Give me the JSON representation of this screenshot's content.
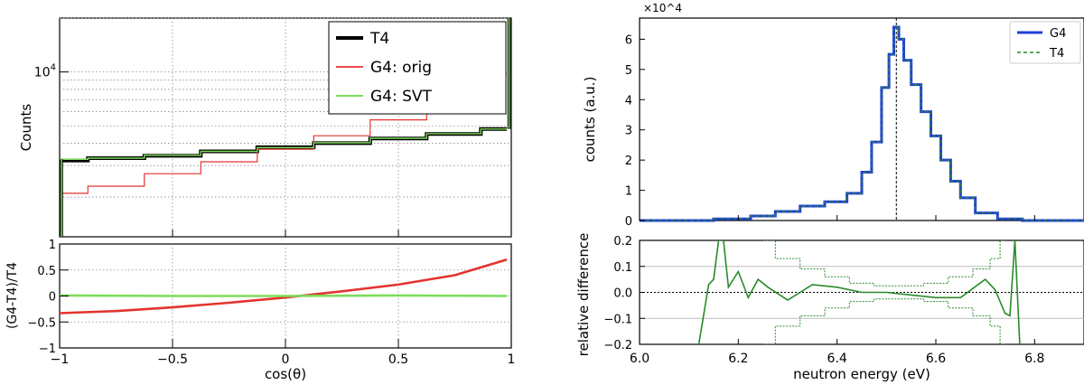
{
  "chart_data": [
    {
      "type": "line",
      "panel": "left-top",
      "title": "",
      "xlabel": "",
      "ylabel": "Counts",
      "xlim": [
        -1,
        1
      ],
      "yscale": "log",
      "ylim": [
        1200,
        20000
      ],
      "y_ticks": [
        {
          "value": 10000,
          "label": "10^4"
        }
      ],
      "grid": true,
      "legend_position": "top-right",
      "series": [
        {
          "name": "T4",
          "color": "#000000",
          "x": [
            -1,
            -0.75,
            -0.5,
            -0.25,
            0,
            0.25,
            0.5,
            0.75,
            0.98
          ],
          "y": [
            3200,
            3300,
            3400,
            3600,
            3800,
            4000,
            4250,
            4500,
            4800
          ]
        },
        {
          "name": "G4: orig",
          "color": "#e3342f",
          "x": [
            -1,
            -0.75,
            -0.5,
            -0.25,
            0,
            0.25,
            0.5,
            0.75,
            0.98
          ],
          "y": [
            2100,
            2300,
            2700,
            3150,
            3700,
            4400,
            5400,
            7000,
            9800
          ]
        },
        {
          "name": "G4: SVT",
          "color": "#7ddc5a",
          "x": [
            -1,
            -0.75,
            -0.5,
            -0.25,
            0,
            0.25,
            0.5,
            0.75,
            0.98
          ],
          "y": [
            3250,
            3300,
            3420,
            3600,
            3780,
            4020,
            4260,
            4520,
            4800
          ]
        }
      ]
    },
    {
      "type": "line",
      "panel": "left-bottom",
      "xlabel": "cos(θ)",
      "ylabel": "(G4-T4)/T4",
      "xlim": [
        -1,
        1
      ],
      "ylim": [
        -1,
        1
      ],
      "x_ticks": [
        "−1",
        "−0.5",
        "0",
        "0.5",
        "1"
      ],
      "y_ticks": [
        "−1",
        "−0.5",
        "0",
        "0.5",
        "1"
      ],
      "grid": true,
      "series": [
        {
          "name": "G4: orig",
          "color": "#e3342f",
          "x": [
            -1,
            -0.75,
            -0.5,
            -0.25,
            0,
            0.25,
            0.5,
            0.75,
            0.98
          ],
          "y": [
            -0.33,
            -0.29,
            -0.22,
            -0.13,
            -0.03,
            0.09,
            0.22,
            0.4,
            0.7
          ]
        },
        {
          "name": "G4: SVT",
          "color": "#7ddc5a",
          "x": [
            -1,
            -0.5,
            0,
            0.5,
            0.98
          ],
          "y": [
            0.01,
            0.0,
            0.0,
            0.01,
            0.0
          ]
        }
      ]
    },
    {
      "type": "line",
      "panel": "right-top",
      "xlabel": "",
      "ylabel": "counts (a.u.)",
      "y_multiplier": "×10^4",
      "xlim": [
        6.0,
        6.9
      ],
      "ylim": [
        0,
        6.7
      ],
      "y_ticks": [
        "0",
        "1",
        "2",
        "3",
        "4",
        "5",
        "6"
      ],
      "vline_x": 6.52,
      "legend_position": "top-right",
      "series": [
        {
          "name": "G4",
          "color": "#1f3fd8",
          "x": [
            6.0,
            6.1,
            6.2,
            6.25,
            6.3,
            6.35,
            6.4,
            6.44,
            6.46,
            6.48,
            6.5,
            6.51,
            6.52,
            6.53,
            6.54,
            6.56,
            6.58,
            6.6,
            6.62,
            6.64,
            6.66,
            6.7,
            6.75,
            6.8,
            6.9
          ],
          "y": [
            0,
            0,
            0.05,
            0.15,
            0.3,
            0.48,
            0.62,
            0.9,
            1.6,
            2.6,
            4.4,
            5.5,
            6.4,
            6.0,
            5.3,
            4.5,
            3.6,
            2.8,
            2.0,
            1.3,
            0.75,
            0.25,
            0.05,
            0,
            0
          ]
        },
        {
          "name": "T4",
          "color": "#2a8a2a",
          "x": [
            6.0,
            6.1,
            6.2,
            6.25,
            6.3,
            6.35,
            6.4,
            6.44,
            6.46,
            6.48,
            6.5,
            6.51,
            6.52,
            6.53,
            6.54,
            6.56,
            6.58,
            6.6,
            6.62,
            6.64,
            6.66,
            6.7,
            6.75,
            6.8,
            6.9
          ],
          "y": [
            0,
            0,
            0.05,
            0.15,
            0.3,
            0.48,
            0.62,
            0.9,
            1.6,
            2.6,
            4.4,
            5.5,
            6.4,
            6.0,
            5.3,
            4.5,
            3.6,
            2.8,
            2.0,
            1.3,
            0.75,
            0.25,
            0.05,
            0,
            0
          ]
        }
      ]
    },
    {
      "type": "line",
      "panel": "right-bottom",
      "xlabel": "neutron energy (eV)",
      "ylabel": "relative difference",
      "xlim": [
        6.0,
        6.9
      ],
      "ylim": [
        -0.2,
        0.2
      ],
      "x_ticks": [
        "6.0",
        "6.2",
        "6.4",
        "6.6",
        "6.8"
      ],
      "y_ticks": [
        "−0.2",
        "−0.1",
        "0.0",
        "0.1",
        "0.2"
      ],
      "series": [
        {
          "name": "difference",
          "color": "#2a8a2a",
          "x": [
            6.12,
            6.14,
            6.15,
            6.16,
            6.17,
            6.18,
            6.2,
            6.22,
            6.24,
            6.26,
            6.3,
            6.35,
            6.4,
            6.45,
            6.5,
            6.55,
            6.6,
            6.65,
            6.7,
            6.72,
            6.74,
            6.75,
            6.76,
            6.77
          ],
          "y": [
            -0.2,
            0.03,
            0.05,
            0.2,
            0.2,
            0.02,
            0.08,
            -0.02,
            0.05,
            0.02,
            -0.03,
            0.03,
            0.02,
            0.0,
            0.0,
            -0.01,
            -0.02,
            -0.02,
            0.05,
            0.01,
            -0.08,
            -0.09,
            0.2,
            -0.2
          ]
        },
        {
          "name": "upper-band",
          "color": "#2a8a2a",
          "x": [
            6.25,
            6.3,
            6.35,
            6.4,
            6.45,
            6.5,
            6.55,
            6.6,
            6.65,
            6.7,
            6.72,
            6.74
          ],
          "y": [
            0.2,
            0.13,
            0.09,
            0.06,
            0.035,
            0.025,
            0.025,
            0.035,
            0.06,
            0.09,
            0.13,
            0.2
          ]
        },
        {
          "name": "lower-band",
          "color": "#2a8a2a",
          "x": [
            6.25,
            6.3,
            6.35,
            6.4,
            6.45,
            6.5,
            6.55,
            6.6,
            6.65,
            6.7,
            6.72,
            6.74
          ],
          "y": [
            -0.2,
            -0.13,
            -0.09,
            -0.06,
            -0.035,
            -0.025,
            -0.025,
            -0.035,
            -0.06,
            -0.09,
            -0.13,
            -0.2
          ]
        }
      ]
    }
  ]
}
